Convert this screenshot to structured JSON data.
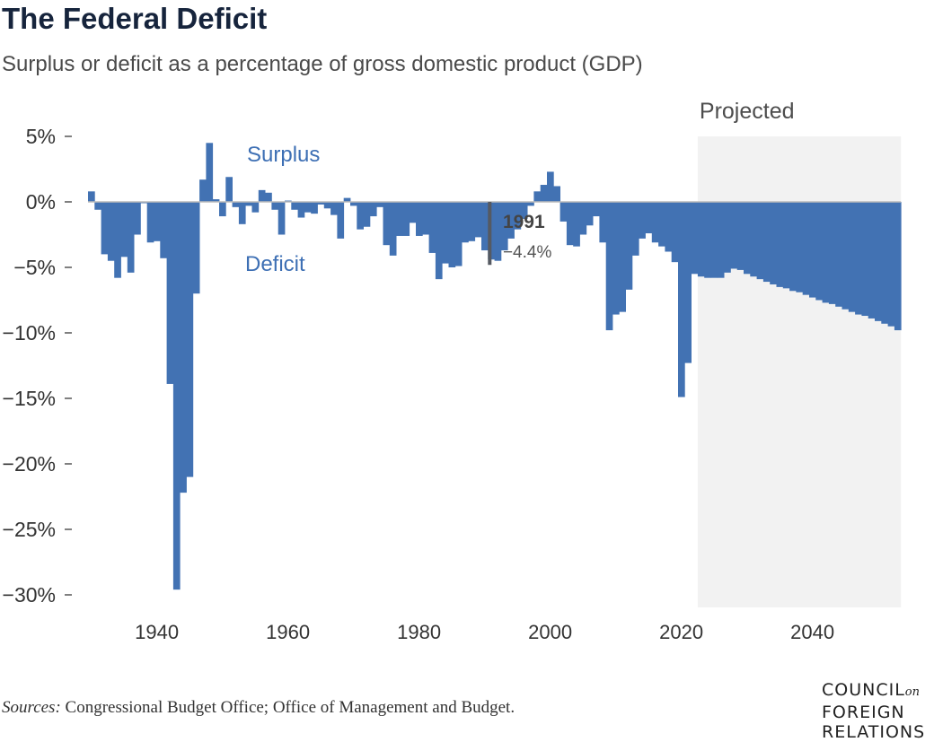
{
  "title": "The Federal Deficit",
  "subtitle": "Surplus or deficit as a percentage of gross domestic product (GDP)",
  "source": {
    "label": "Sources:",
    "text": "Congressional Budget Office; Office of Management and Budget."
  },
  "logo": {
    "line1": "COUNCIL",
    "on": "on",
    "line2": "FOREIGN",
    "line3": "RELATIONS"
  },
  "colors": {
    "bar": "#4272b3",
    "projected_bg": "#f2f2f2",
    "zero_line": "#bbbbbb",
    "callout": "#555a62"
  },
  "chart_data": {
    "type": "bar",
    "title": "",
    "xlabel": "",
    "ylabel": "",
    "x_ticks": [
      "1940",
      "1960",
      "1980",
      "2000",
      "2020",
      "2040"
    ],
    "y_ticks": [
      "5%",
      "0%",
      "−5%",
      "−10%",
      "−15%",
      "−20%",
      "−25%",
      "−30%"
    ],
    "ylim": [
      -30,
      5
    ],
    "xlim": [
      1929.5,
      2053.5
    ],
    "grid": false,
    "legend": "none",
    "annotations": {
      "surplus": "Surplus",
      "deficit": "Deficit",
      "projected": "Projected"
    },
    "highlight": {
      "year": 1991,
      "year_label": "1991",
      "value": -4.4,
      "value_label": "−4.4%"
    },
    "projected_from": 2023,
    "years": [
      1930,
      1931,
      1932,
      1933,
      1934,
      1935,
      1936,
      1937,
      1938,
      1939,
      1940,
      1941,
      1942,
      1943,
      1944,
      1945,
      1946,
      1947,
      1948,
      1949,
      1950,
      1951,
      1952,
      1953,
      1954,
      1955,
      1956,
      1957,
      1958,
      1959,
      1960,
      1961,
      1962,
      1963,
      1964,
      1965,
      1966,
      1967,
      1968,
      1969,
      1970,
      1971,
      1972,
      1973,
      1974,
      1975,
      1976,
      1977,
      1978,
      1979,
      1980,
      1981,
      1982,
      1983,
      1984,
      1985,
      1986,
      1987,
      1988,
      1989,
      1990,
      1991,
      1992,
      1993,
      1994,
      1995,
      1996,
      1997,
      1998,
      1999,
      2000,
      2001,
      2002,
      2003,
      2004,
      2005,
      2006,
      2007,
      2008,
      2009,
      2010,
      2011,
      2012,
      2013,
      2014,
      2015,
      2016,
      2017,
      2018,
      2019,
      2020,
      2021,
      2022,
      2023,
      2024,
      2025,
      2026,
      2027,
      2028,
      2029,
      2030,
      2031,
      2032,
      2033,
      2034,
      2035,
      2036,
      2037,
      2038,
      2039,
      2040,
      2041,
      2042,
      2043,
      2044,
      2045,
      2046,
      2047,
      2048,
      2049,
      2050,
      2051,
      2052,
      2053
    ],
    "values": [
      0.8,
      -0.6,
      -4.0,
      -4.5,
      -5.8,
      -4.2,
      -5.4,
      -2.5,
      -0.1,
      -3.1,
      -3.0,
      -4.3,
      -13.9,
      -29.6,
      -22.2,
      -21.0,
      -7.0,
      1.7,
      4.5,
      0.2,
      -1.1,
      1.9,
      -0.4,
      -1.7,
      -0.3,
      -0.8,
      0.9,
      0.7,
      -0.6,
      -2.5,
      0.1,
      -0.6,
      -1.2,
      -0.8,
      -0.9,
      -0.2,
      -0.5,
      -1.0,
      -2.8,
      0.3,
      -0.3,
      -2.1,
      -1.9,
      -1.1,
      -0.4,
      -3.3,
      -4.1,
      -2.6,
      -2.6,
      -1.6,
      -2.6,
      -2.5,
      -3.9,
      -5.9,
      -4.7,
      -5.0,
      -4.9,
      -3.1,
      -3.0,
      -2.7,
      -3.7,
      -4.4,
      -4.5,
      -3.7,
      -2.8,
      -2.1,
      -1.3,
      -0.3,
      0.8,
      1.3,
      2.3,
      1.2,
      -1.5,
      -3.3,
      -3.4,
      -2.5,
      -1.8,
      -1.1,
      -3.1,
      -9.8,
      -8.6,
      -8.4,
      -6.7,
      -4.1,
      -2.8,
      -2.4,
      -3.1,
      -3.4,
      -3.8,
      -4.6,
      -14.9,
      -12.3,
      -5.5,
      -5.7,
      -5.8,
      -5.8,
      -5.8,
      -5.4,
      -5.1,
      -5.2,
      -5.5,
      -5.7,
      -5.9,
      -6.1,
      -6.3,
      -6.5,
      -6.6,
      -6.8,
      -6.9,
      -7.1,
      -7.3,
      -7.5,
      -7.7,
      -7.8,
      -8.0,
      -8.2,
      -8.4,
      -8.6,
      -8.7,
      -8.9,
      -9.1,
      -9.3,
      -9.5,
      -9.8
    ]
  }
}
